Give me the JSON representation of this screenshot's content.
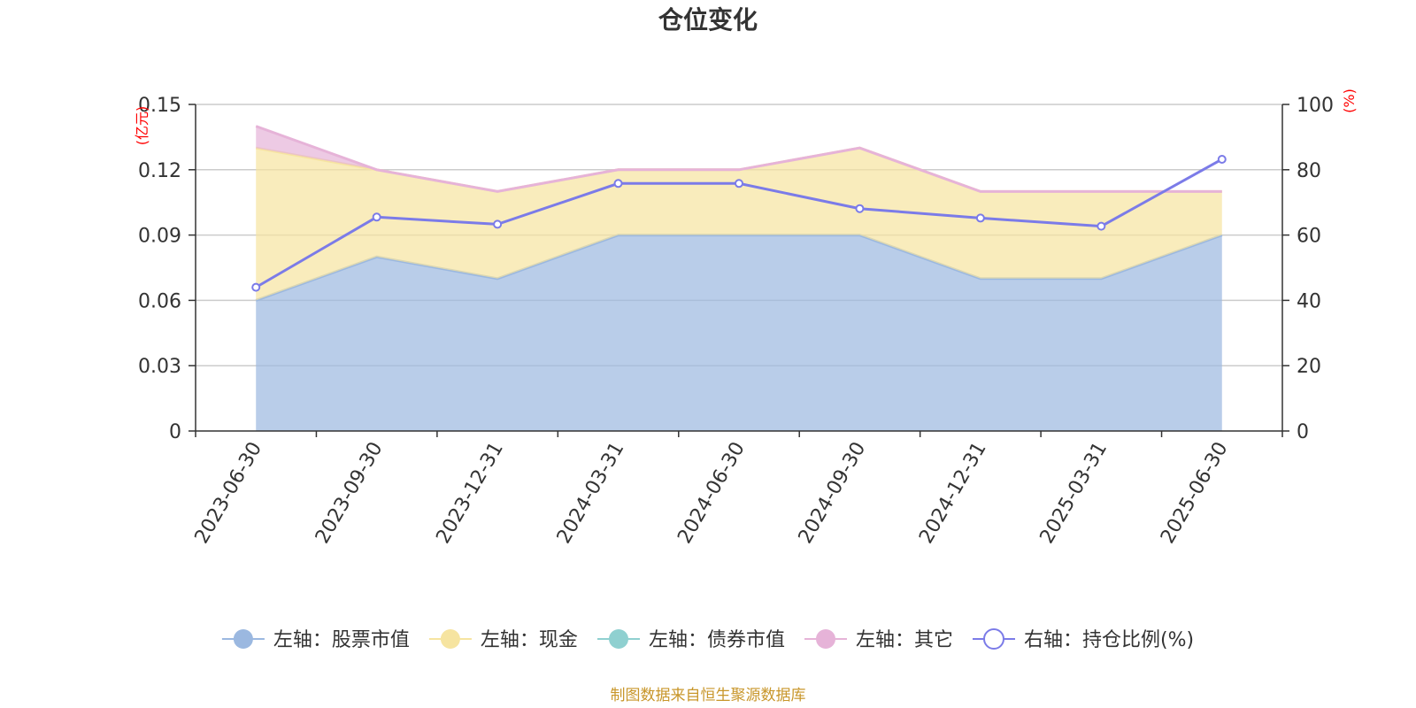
{
  "chart_data": {
    "type": "area",
    "title": "仓位变化",
    "categories": [
      "2023-06-30",
      "2023-09-30",
      "2023-12-31",
      "2024-03-31",
      "2024-06-30",
      "2024-09-30",
      "2024-12-31",
      "2025-03-31",
      "2025-06-30"
    ],
    "left_axis": {
      "unit_label": "(亿元)",
      "ylim": [
        0,
        0.15
      ],
      "ticks": [
        "0",
        "0.03",
        "0.06",
        "0.09",
        "0.12",
        "0.15"
      ]
    },
    "right_axis": {
      "unit_label": "(%)",
      "ylim": [
        0,
        100
      ],
      "ticks": [
        "0",
        "20",
        "40",
        "60",
        "80",
        "100"
      ]
    },
    "grid": true,
    "stacked": true,
    "series": [
      {
        "name": "左轴：股票市值",
        "axis": "left",
        "type": "area",
        "color": "#9bb8e0",
        "values": [
          0.06,
          0.08,
          0.07,
          0.09,
          0.09,
          0.09,
          0.07,
          0.07,
          0.09
        ]
      },
      {
        "name": "左轴：现金",
        "axis": "left",
        "type": "area",
        "color": "#f6e4a0",
        "values": [
          0.07,
          0.04,
          0.04,
          0.03,
          0.03,
          0.04,
          0.04,
          0.04,
          0.02
        ]
      },
      {
        "name": "左轴：债券市值",
        "axis": "left",
        "type": "area",
        "color": "#8fd0d0",
        "values": [
          0,
          0,
          0,
          0,
          0,
          0,
          0,
          0,
          0
        ]
      },
      {
        "name": "左轴：其它",
        "axis": "left",
        "type": "area",
        "color": "#e6b3d8",
        "values": [
          0.01,
          0,
          0,
          0,
          0,
          0,
          0,
          0,
          0
        ]
      },
      {
        "name": "右轴：持仓比例(%)",
        "axis": "right",
        "type": "line",
        "color": "#7b7be8",
        "values": [
          44,
          65.5,
          63.3,
          75.8,
          75.8,
          68.1,
          65.2,
          62.7,
          83.2
        ]
      }
    ],
    "legend_position": "bottom"
  },
  "footer": {
    "source": "制图数据来自恒生聚源数据库"
  }
}
